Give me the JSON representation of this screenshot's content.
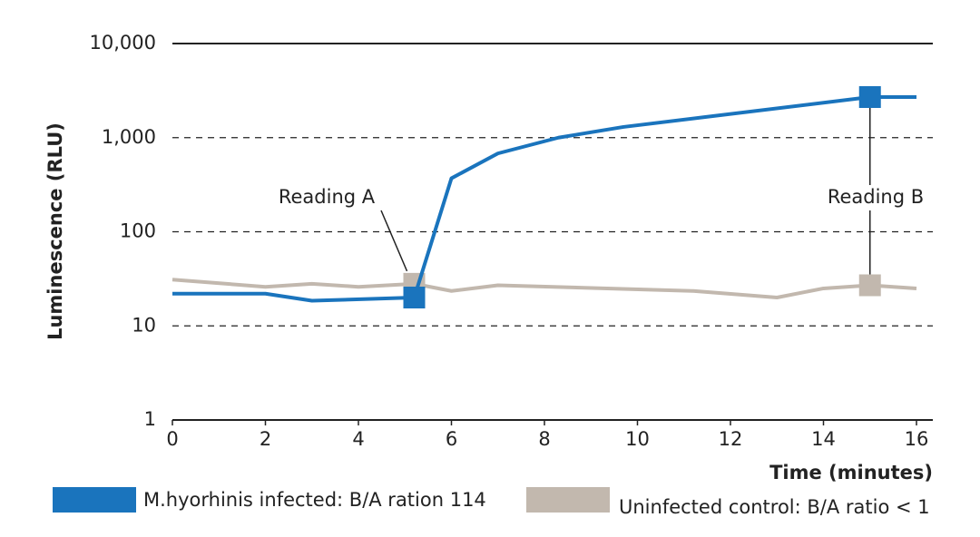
{
  "chart_data": {
    "type": "line",
    "y_label": "Luminescence (RLU)",
    "x_label": "Time (minutes)",
    "y_scale": "log",
    "ylim": [
      1,
      10000
    ],
    "yticks": [
      1,
      10,
      100,
      {
        "value": 1000,
        "label": "1,000"
      },
      {
        "value": 10000,
        "label": "10,000"
      }
    ],
    "xlim": [
      0,
      16
    ],
    "xticks": [
      0,
      2,
      4,
      6,
      8,
      10,
      12,
      14,
      16
    ],
    "grid": true,
    "series": [
      {
        "name": "M.hyorhinis infected: B/A ration 114",
        "color": "#1a74bd",
        "x": [
          0,
          2,
          3,
          5.2,
          6,
          7,
          8.3,
          9.7,
          15,
          16
        ],
        "values": [
          22,
          22,
          18.5,
          20,
          370,
          680,
          1000,
          1300,
          2700,
          2700
        ],
        "markers": [
          3,
          8
        ]
      },
      {
        "name": "Uninfected control: B/A ratio < 1",
        "color": "#c2b8ae",
        "x": [
          0,
          2,
          3,
          4,
          5.2,
          6,
          7,
          11.2,
          13,
          14,
          15,
          16
        ],
        "values": [
          31,
          26,
          28,
          26,
          28,
          23.5,
          27,
          23.5,
          20,
          25,
          27,
          25
        ],
        "markers": [
          4,
          10
        ]
      }
    ],
    "annotations": [
      "Reading A",
      "Reading B"
    ]
  }
}
